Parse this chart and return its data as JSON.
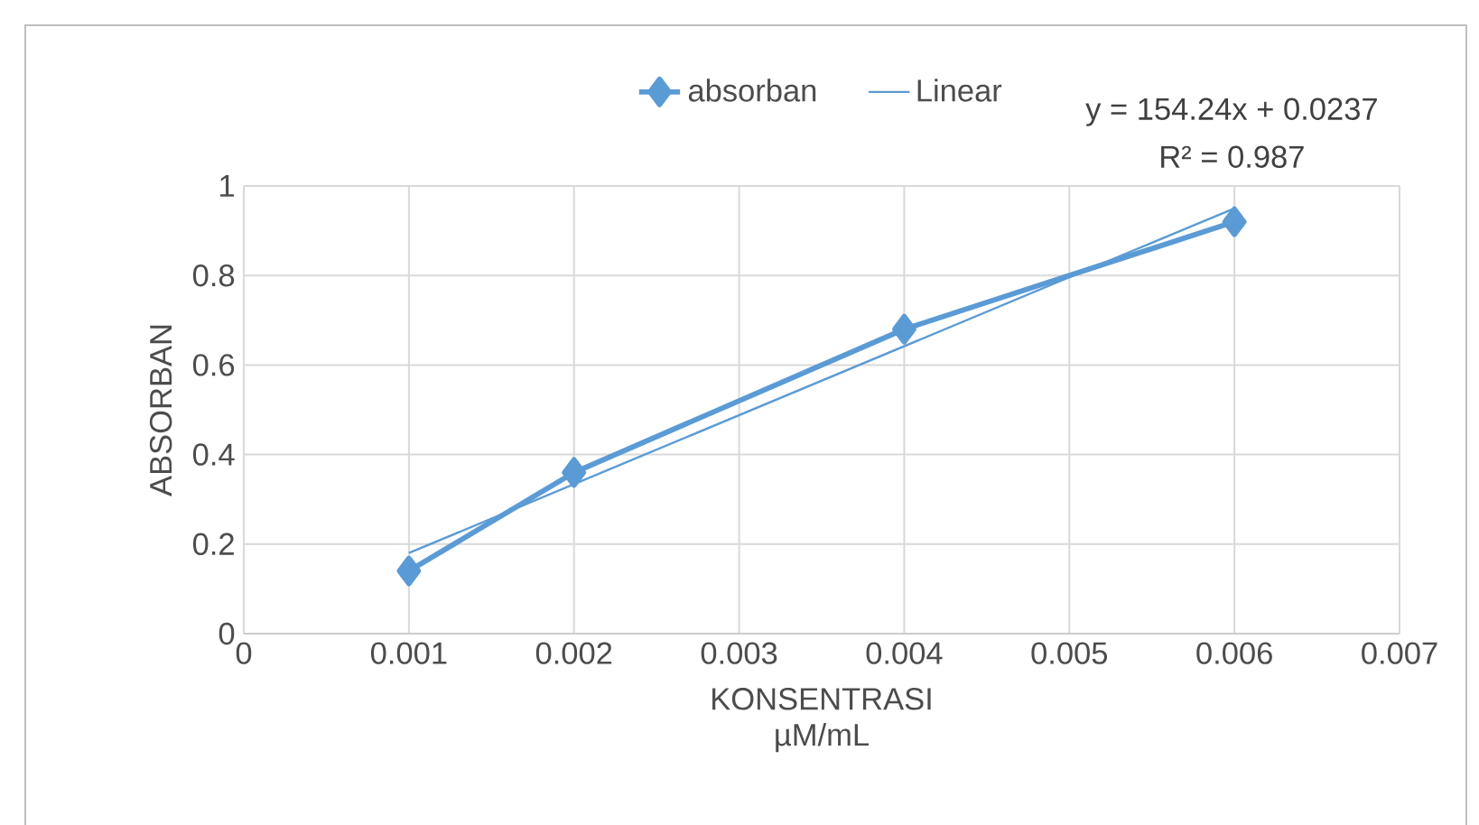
{
  "chart_data": {
    "type": "line",
    "xlabel": "KONSENTRASI µM/mL",
    "ylabel": "ABSORBAN",
    "annotations": [
      "y = 154.24x + 0.0237",
      "R² = 0.987"
    ],
    "series": [
      {
        "name": "absorban",
        "color": "#5b9bd5",
        "x": [
          0.001,
          0.002,
          0.004,
          0.006
        ],
        "values": [
          0.14,
          0.36,
          0.68,
          0.92
        ],
        "marker": "diamond"
      },
      {
        "name": "Linear",
        "type": "line",
        "color": "#5b9bd5",
        "x": [
          0.001,
          0.006
        ],
        "values": [
          0.18,
          0.95
        ],
        "marker": "none"
      }
    ],
    "xlim": [
      0,
      0.007
    ],
    "xticks": [
      0,
      0.001,
      0.002,
      0.003,
      0.004,
      0.005,
      0.006,
      0.007
    ],
    "ylim": [
      0,
      1
    ],
    "yticks": [
      0,
      0.2,
      0.4,
      0.6,
      0.8,
      1
    ],
    "grid": true,
    "legend": "top",
    "line_style": "solid"
  }
}
